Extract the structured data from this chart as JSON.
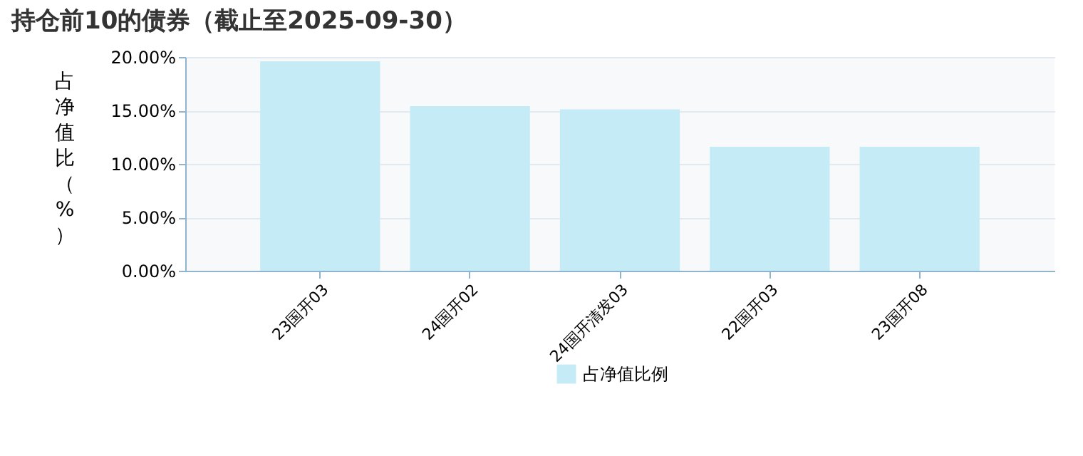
{
  "chart_data": {
    "type": "bar",
    "title": "持仓前10的债券（截止至2025-09-30）",
    "ylabel": "占净值比（%）",
    "categories": [
      "23国开03",
      "24国开02",
      "24国开清发03",
      "22国开03",
      "23国开08"
    ],
    "series": [
      {
        "name": "占净值比例",
        "color": "#c4ebf6",
        "values": [
          19.6,
          15.4,
          15.1,
          11.6,
          11.6
        ]
      }
    ],
    "ylim": [
      0,
      20
    ],
    "yticks": [
      {
        "value": 0,
        "label": "0.00%"
      },
      {
        "value": 5,
        "label": "5.00%"
      },
      {
        "value": 10,
        "label": "10.00%"
      },
      {
        "value": 15,
        "label": "15.00%"
      },
      {
        "value": 20,
        "label": "20.00%"
      }
    ],
    "grid": "y",
    "legend": "bottom"
  }
}
